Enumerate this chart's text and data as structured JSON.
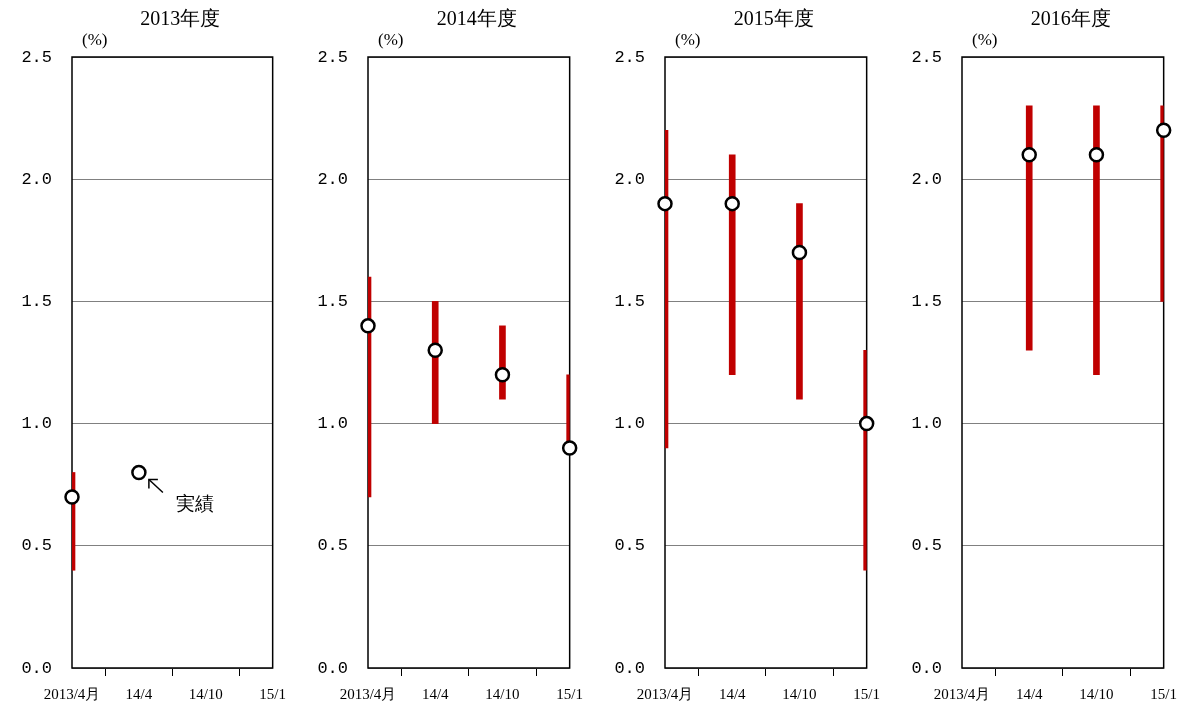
{
  "chart_data": [
    {
      "type": "bar",
      "title": "2013年度",
      "ylabel": "(%)",
      "categories": [
        "2013/4月",
        "14/4",
        "14/10",
        "15/1"
      ],
      "ylim": [
        0,
        2.5
      ],
      "yticks": [
        {
          "value": 0,
          "label": "0.0"
        },
        0.5,
        {
          "value": 1,
          "label": "1.0"
        },
        1.5,
        {
          "value": 2,
          "label": "2.0"
        },
        2.5
      ],
      "grid": "y",
      "legend": false,
      "series": [
        {
          "color": "#c00000",
          "base": [
            0.4,
            null,
            null,
            null
          ],
          "values": [
            0.4,
            null,
            null,
            null
          ]
        },
        {
          "type": "scatter",
          "color": "#ffffff",
          "marker": "circle",
          "x": [
            "2013/4月",
            "14/4",
            "14/10",
            "15/1"
          ],
          "values": [
            0.7,
            0.8,
            null,
            null
          ]
        }
      ],
      "annotations": [
        {
          "text": "実績",
          "x": "14/4",
          "y": 0.8
        }
      ]
    },
    {
      "type": "bar",
      "title": "2014年度",
      "ylabel": "(%)",
      "categories": [
        "2013/4月",
        "14/4",
        "14/10",
        "15/1"
      ],
      "ylim": [
        0,
        2.5
      ],
      "yticks": [
        {
          "value": 0,
          "label": "0.0"
        },
        0.5,
        {
          "value": 1,
          "label": "1.0"
        },
        1.5,
        {
          "value": 2,
          "label": "2.0"
        },
        2.5
      ],
      "grid": "y",
      "legend": false,
      "series": [
        {
          "color": "#c00000",
          "base": [
            0.7,
            1.0,
            1.1,
            0.9
          ],
          "values": [
            0.9,
            0.5,
            0.3,
            0.3
          ]
        },
        {
          "type": "scatter",
          "color": "#ffffff",
          "marker": "circle",
          "x": [
            "2013/4月",
            "14/4",
            "14/10",
            "15/1"
          ],
          "values": [
            1.4,
            1.3,
            1.2,
            0.9
          ]
        }
      ]
    },
    {
      "type": "bar",
      "title": "2015年度",
      "ylabel": "(%)",
      "categories": [
        "2013/4月",
        "14/4",
        "14/10",
        "15/1"
      ],
      "ylim": [
        0,
        2.5
      ],
      "yticks": [
        {
          "value": 0,
          "label": "0.0"
        },
        0.5,
        {
          "value": 1,
          "label": "1.0"
        },
        1.5,
        {
          "value": 2,
          "label": "2.0"
        },
        2.5
      ],
      "grid": "y",
      "legend": false,
      "series": [
        {
          "color": "#c00000",
          "base": [
            0.9,
            1.2,
            1.1,
            0.4
          ],
          "values": [
            1.3,
            0.9,
            0.8,
            0.9
          ]
        },
        {
          "type": "scatter",
          "color": "#ffffff",
          "marker": "circle",
          "x": [
            "2013/4月",
            "14/4",
            "14/10",
            "15/1"
          ],
          "values": [
            1.9,
            1.9,
            1.7,
            1.0
          ]
        }
      ]
    },
    {
      "type": "bar",
      "title": "2016年度",
      "ylabel": "(%)",
      "categories": [
        "2013/4月",
        "14/4",
        "14/10",
        "15/1"
      ],
      "ylim": [
        0,
        2.5
      ],
      "yticks": [
        {
          "value": 0,
          "label": "0.0"
        },
        0.5,
        {
          "value": 1,
          "label": "1.0"
        },
        1.5,
        {
          "value": 2,
          "label": "2.0"
        },
        2.5
      ],
      "grid": "y",
      "legend": false,
      "series": [
        {
          "color": "#c00000",
          "base": [
            null,
            1.3,
            1.2,
            1.5
          ],
          "values": [
            null,
            1.0,
            1.1,
            0.8
          ]
        },
        {
          "type": "scatter",
          "color": "#ffffff",
          "marker": "circle",
          "x": [
            "2013/4月",
            "14/4",
            "14/10",
            "15/1"
          ],
          "values": [
            null,
            2.1,
            2.1,
            2.2
          ]
        }
      ]
    }
  ]
}
